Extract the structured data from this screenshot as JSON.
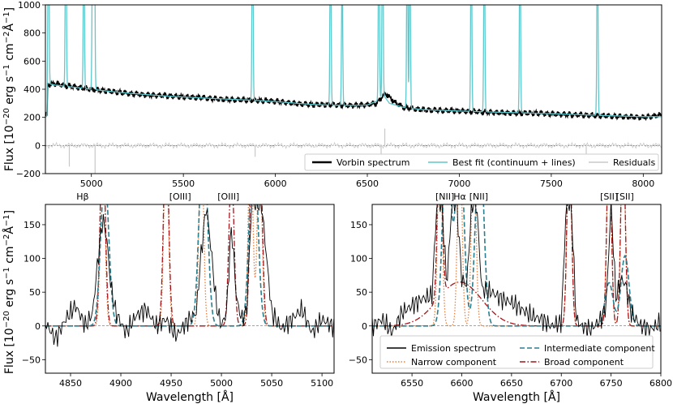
{
  "chart_data": [
    {
      "type": "line",
      "panel": "top",
      "ylabel": "Flux [10$^{-20}$ erg s$^{-1}$ cm$^{-2}$Å$^{-1}$]",
      "ylabel_parts": {
        "pre": "Flux [10",
        "e1": "−20",
        "mid1": " erg s",
        "e2": "−1",
        "mid2": " cm",
        "e3": "−2",
        "mid3": "Å",
        "e4": "−1",
        "post": "]"
      },
      "xlim": [
        4750,
        8100
      ],
      "ylim": [
        -200,
        1000
      ],
      "xticks": [
        5000,
        5500,
        6000,
        6500,
        7000,
        7500,
        8000
      ],
      "yticks": [
        -200,
        0,
        200,
        400,
        600,
        800,
        1000
      ],
      "legend_position": "lower right",
      "grid": false,
      "zero_line": true,
      "series": [
        {
          "name": "Vorbin spectrum",
          "color": "#000000",
          "style": "solid",
          "x": [
            4760,
            4800,
            4860,
            4900,
            4950,
            5000,
            5100,
            5200,
            5300,
            5400,
            5500,
            5600,
            5700,
            5800,
            5900,
            6000,
            6100,
            6200,
            6300,
            6400,
            6500,
            6550,
            6580,
            6600,
            6650,
            6700,
            6800,
            6900,
            7000,
            7100,
            7200,
            7300,
            7400,
            7500,
            7600,
            7700,
            7800,
            7900,
            8000,
            8090
          ],
          "y": [
            430,
            440,
            425,
            420,
            410,
            400,
            385,
            370,
            360,
            355,
            345,
            340,
            330,
            325,
            320,
            315,
            300,
            290,
            290,
            285,
            290,
            300,
            345,
            370,
            305,
            270,
            255,
            250,
            245,
            240,
            235,
            230,
            230,
            225,
            220,
            215,
            210,
            205,
            200,
            215
          ]
        },
        {
          "name": "Best fit (continuum + lines)",
          "color": "#5ec8cc",
          "style": "solid",
          "x": [
            4760,
            4800,
            4900,
            5000,
            5100,
            5200,
            5300,
            5400,
            5500,
            5600,
            5700,
            5800,
            5900,
            6000,
            6100,
            6200,
            6300,
            6400,
            6500,
            6560,
            6590,
            6620,
            6700,
            6800,
            6900,
            7000,
            7200,
            7400,
            7600,
            7800,
            8000,
            8090
          ],
          "y": [
            440,
            430,
            415,
            400,
            385,
            372,
            362,
            352,
            345,
            338,
            332,
            326,
            320,
            312,
            302,
            292,
            287,
            285,
            288,
            320,
            355,
            300,
            270,
            255,
            250,
            245,
            237,
            230,
            222,
            212,
            205,
            205
          ],
          "lines_x": [
            4767,
            4861,
            4959,
            5007,
            5016,
            5876,
            6300,
            6363,
            6563,
            6583,
            6717,
            6731,
            7065,
            7136,
            7330,
            7751
          ],
          "lines_peak": [
            860,
            1000,
            780,
            1000,
            1000,
            1000,
            1000,
            620,
            1000,
            1000,
            1000,
            1000,
            1000,
            1000,
            1000,
            1000
          ]
        },
        {
          "name": "Residuals",
          "color": "#c8c8c8",
          "style": "solid",
          "x": [
            4760,
            4900,
            5000,
            5200,
            5400,
            5600,
            5800,
            6000,
            6200,
            6400,
            6600,
            6800,
            7000,
            7200,
            7400,
            7600,
            7800,
            8000,
            8090
          ],
          "y": [
            10,
            20,
            -10,
            15,
            5,
            -5,
            10,
            -5,
            5,
            -10,
            15,
            -5,
            5,
            -10,
            5,
            -5,
            5,
            -10,
            10
          ],
          "spikes_x": [
            4880,
            5020,
            5890,
            6575,
            6595,
            7690
          ],
          "spikes_y": [
            -150,
            -200,
            -80,
            -170,
            120,
            -90
          ]
        }
      ]
    },
    {
      "type": "line",
      "panel": "bottom-left",
      "xlabel": "Wavelength [Å]",
      "ylabel": "Flux [10$^{-20}$ erg s$^{-1}$ cm$^{-2}$Å$^{-1}$]",
      "xlim": [
        4825,
        5112
      ],
      "ylim": [
        -70,
        180
      ],
      "xticks": [
        4850,
        4900,
        4950,
        5000,
        5050,
        5100
      ],
      "yticks": [
        -50,
        0,
        50,
        100,
        150
      ],
      "line_labels": [
        {
          "text": "Hβ",
          "x": 4862
        },
        {
          "text": "[OIII]",
          "x": 4959
        },
        {
          "text": "[OIII]",
          "x": 5007
        }
      ],
      "series": [
        {
          "name": "Emission spectrum",
          "color": "#000000",
          "style": "solid",
          "x": [
            4825,
            4835,
            4845,
            4855,
            4865,
            4872,
            4878,
            4882,
            4886,
            4890,
            4895,
            4905,
            4915,
            4925,
            4935,
            4945,
            4955,
            4965,
            4975,
            4980,
            4985,
            4990,
            4995,
            5000,
            5005,
            5010,
            5015,
            5020,
            5025,
            5030,
            5040,
            5050,
            5060,
            5070,
            5080,
            5090,
            5100,
            5110
          ],
          "y": [
            5,
            -20,
            10,
            30,
            0,
            20,
            110,
            160,
            130,
            60,
            20,
            -10,
            15,
            25,
            0,
            10,
            -15,
            5,
            20,
            110,
            180,
            110,
            30,
            0,
            20,
            150,
            40,
            10,
            20,
            180,
            180,
            20,
            -5,
            10,
            25,
            -10,
            10,
            0
          ]
        },
        {
          "name": "Narrow component",
          "color": "#f07e3c",
          "style": "dotted",
          "peaks_x": [
            4882,
            4945,
            4980,
            5029,
            5038
          ],
          "peak_heights": [
            180,
            180,
            180,
            180,
            180
          ],
          "sigma": 2.2
        },
        {
          "name": "Intermediate component",
          "color": "#2a7f8f",
          "style": "dashed",
          "peaks_x": [
            4884,
            4982,
            5032
          ],
          "peak_heights": [
            140,
            180,
            180
          ],
          "sigma": 4
        },
        {
          "name": "Broad component",
          "color": "#a5151a",
          "style": "dashdot",
          "peaks_x": [
            4882,
            4945,
            5010,
            5031,
            5038
          ],
          "peak_heights": [
            180,
            180,
            145,
            180,
            180
          ],
          "sigma": 2.5
        }
      ]
    },
    {
      "type": "line",
      "panel": "bottom-right",
      "xlabel": "Wavelength [Å]",
      "xlim": [
        6510,
        6800
      ],
      "ylim": [
        -70,
        180
      ],
      "xticks": [
        6550,
        6600,
        6650,
        6700,
        6750,
        6800
      ],
      "yticks": [
        -50,
        0,
        50,
        100,
        150
      ],
      "legend_position": "lower center",
      "line_labels": [
        {
          "text": "[NII]",
          "x": 6583
        },
        {
          "text": "Hα",
          "x": 6598
        },
        {
          "text": "[NII]",
          "x": 6617
        },
        {
          "text": "[SII]",
          "x": 6748
        },
        {
          "text": "[SII]",
          "x": 6764
        }
      ],
      "series": [
        {
          "name": "Emission spectrum",
          "color": "#000000",
          "style": "solid",
          "x": [
            6510,
            6520,
            6530,
            6540,
            6550,
            6560,
            6570,
            6575,
            6580,
            6585,
            6590,
            6595,
            6600,
            6605,
            6610,
            6615,
            6620,
            6630,
            6640,
            6650,
            6660,
            6670,
            6680,
            6690,
            6700,
            6705,
            6710,
            6715,
            6720,
            6730,
            6740,
            6745,
            6750,
            6755,
            6760,
            6765,
            6770,
            6780,
            6790,
            6800
          ],
          "y": [
            0,
            10,
            -10,
            20,
            30,
            40,
            45,
            180,
            180,
            60,
            180,
            180,
            70,
            60,
            180,
            180,
            55,
            50,
            40,
            35,
            25,
            15,
            10,
            0,
            5,
            180,
            180,
            10,
            0,
            -5,
            10,
            30,
            180,
            40,
            70,
            60,
            20,
            0,
            -5,
            5
          ]
        },
        {
          "name": "Narrow component",
          "color": "#f07e3c",
          "style": "dotted",
          "peaks_x": [
            6578,
            6598,
            6612,
            6708,
            6748,
            6762
          ],
          "peak_heights": [
            180,
            180,
            180,
            180,
            180,
            180
          ],
          "sigma": 2.2
        },
        {
          "name": "Intermediate component",
          "color": "#2a7f8f",
          "style": "dashed",
          "peaks_x": [
            6585,
            6598,
            6618,
            6748,
            6764
          ],
          "peak_heights": [
            180,
            180,
            180,
            40,
            65
          ],
          "sigma": 4
        },
        {
          "name": "Broad component",
          "color": "#a5151a",
          "style": "dashdot",
          "broad_center": 6598,
          "broad_height": 65,
          "broad_sigma": 22,
          "peaks_x": [
            6578,
            6708,
            6748,
            6762
          ],
          "peak_heights": [
            180,
            180,
            180,
            180
          ],
          "sigma": 2.2
        }
      ]
    }
  ]
}
